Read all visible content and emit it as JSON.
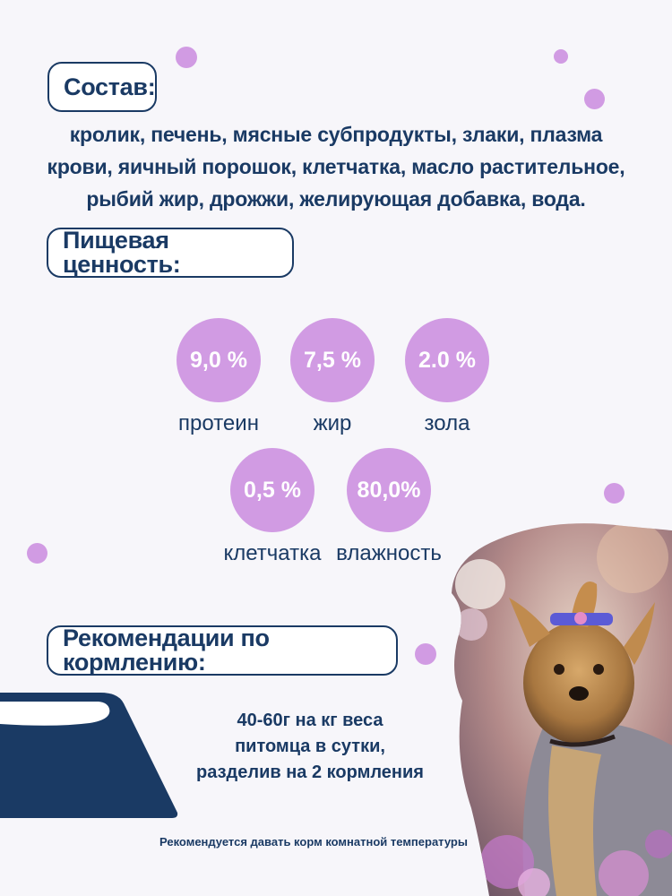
{
  "composition": {
    "title": "Состав:",
    "text": "кролик, печень, мясные субпродукты, злаки, плазма крови, яичный порошок, клетчатка, масло растительное, рыбий жир, дрожжи, желирующая добавка, вода."
  },
  "nutrition": {
    "title": "Пищевая ценность:",
    "items": [
      {
        "value": "9,0 %",
        "label": "протеин"
      },
      {
        "value": "7,5 %",
        "label": "жир"
      },
      {
        "value": "2.0 %",
        "label": "зола"
      },
      {
        "value": "0,5 %",
        "label": "клетчатка"
      },
      {
        "value": "80,0%",
        "label": "влажность"
      }
    ]
  },
  "feeding": {
    "title": "Рекомендации по кормлению:",
    "line1": "40-60г на кг веса",
    "line2": "питомца в сутки,",
    "line3": "разделив на 2 кормления"
  },
  "note": "Рекомендуется давать корм комнатной температуры",
  "colors": {
    "navy": "#1a3a64",
    "lilac": "#d19be3",
    "background": "#f7f6fa"
  },
  "images": {
    "bowl": "bowl-icon",
    "dog": "yorkshire-terrier-photo"
  }
}
